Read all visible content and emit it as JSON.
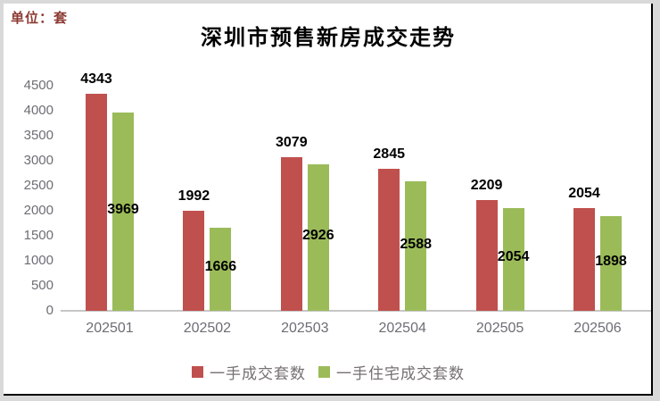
{
  "header": {
    "unit_label": "单位：套",
    "title": "深圳市预售新房成交走势"
  },
  "colors": {
    "series_red": "#C0504D",
    "series_green": "#9BBB59",
    "frame_gray": "#d9d9d9",
    "axis_line": "#c6c6c6",
    "tick_label": "#6d6d75",
    "unit_label_red": "#8c3a32"
  },
  "chart_data": {
    "type": "bar",
    "title": "深圳市预售新房成交走势",
    "unit": "单位：套",
    "categories": [
      "202501",
      "202502",
      "202503",
      "202504",
      "202505",
      "202506"
    ],
    "series": [
      {
        "name": "一手成交套数",
        "color": "#C0504D",
        "values": [
          4343,
          1992,
          3079,
          2845,
          2209,
          2054
        ],
        "label_position": "above-bar"
      },
      {
        "name": "一手住宅成交套数",
        "color": "#9BBB59",
        "values": [
          3969,
          1666,
          2926,
          2588,
          2054,
          1898
        ],
        "label_position": "inside-center"
      }
    ],
    "ylim": [
      0,
      4500
    ],
    "ytick_step": 500,
    "grid": false,
    "legend_position": "bottom",
    "data_labels": true
  }
}
